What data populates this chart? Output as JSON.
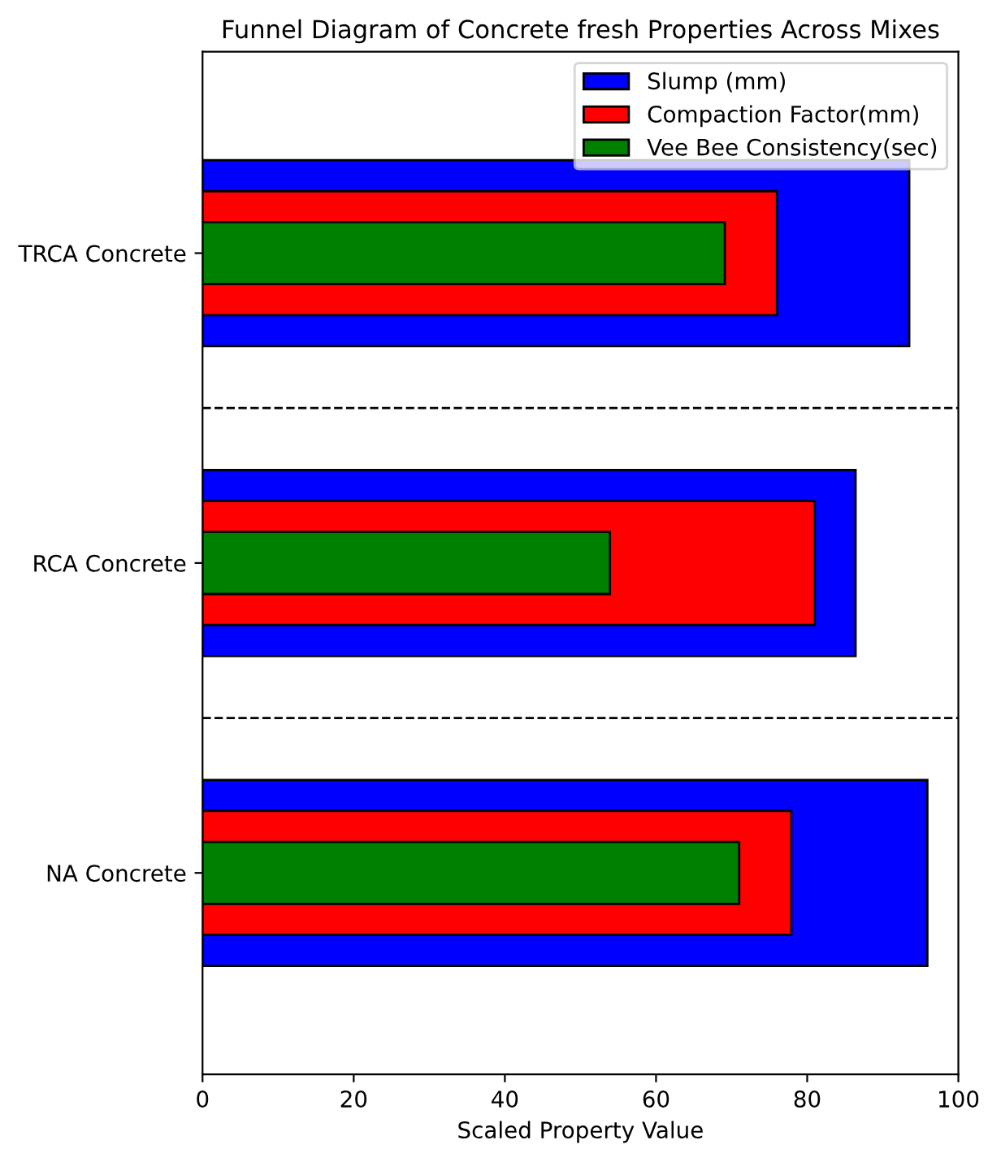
{
  "chart_data": {
    "type": "bar",
    "orientation": "horizontal",
    "title": "Funnel Diagram of Concrete fresh Properties Across Mixes",
    "xlabel": "Scaled Property Value",
    "categories": [
      "TRCA Concrete",
      "RCA Concrete",
      "NA Concrete"
    ],
    "series": [
      {
        "name": "Slump (mm)",
        "color": "#0000ff",
        "values": [
          93.5,
          86.4,
          95.9
        ]
      },
      {
        "name": "Compaction Factor(mm)",
        "color": "#ff0000",
        "values": [
          76.0,
          81.0,
          77.9
        ]
      },
      {
        "name": "Vee Bee Consistency(sec)",
        "color": "#008000",
        "values": [
          69.1,
          53.9,
          71.0
        ]
      }
    ],
    "xlim": [
      0,
      100
    ],
    "xticks": [
      0,
      20,
      40,
      60,
      80,
      100
    ],
    "legend": "top right",
    "grid": false
  }
}
